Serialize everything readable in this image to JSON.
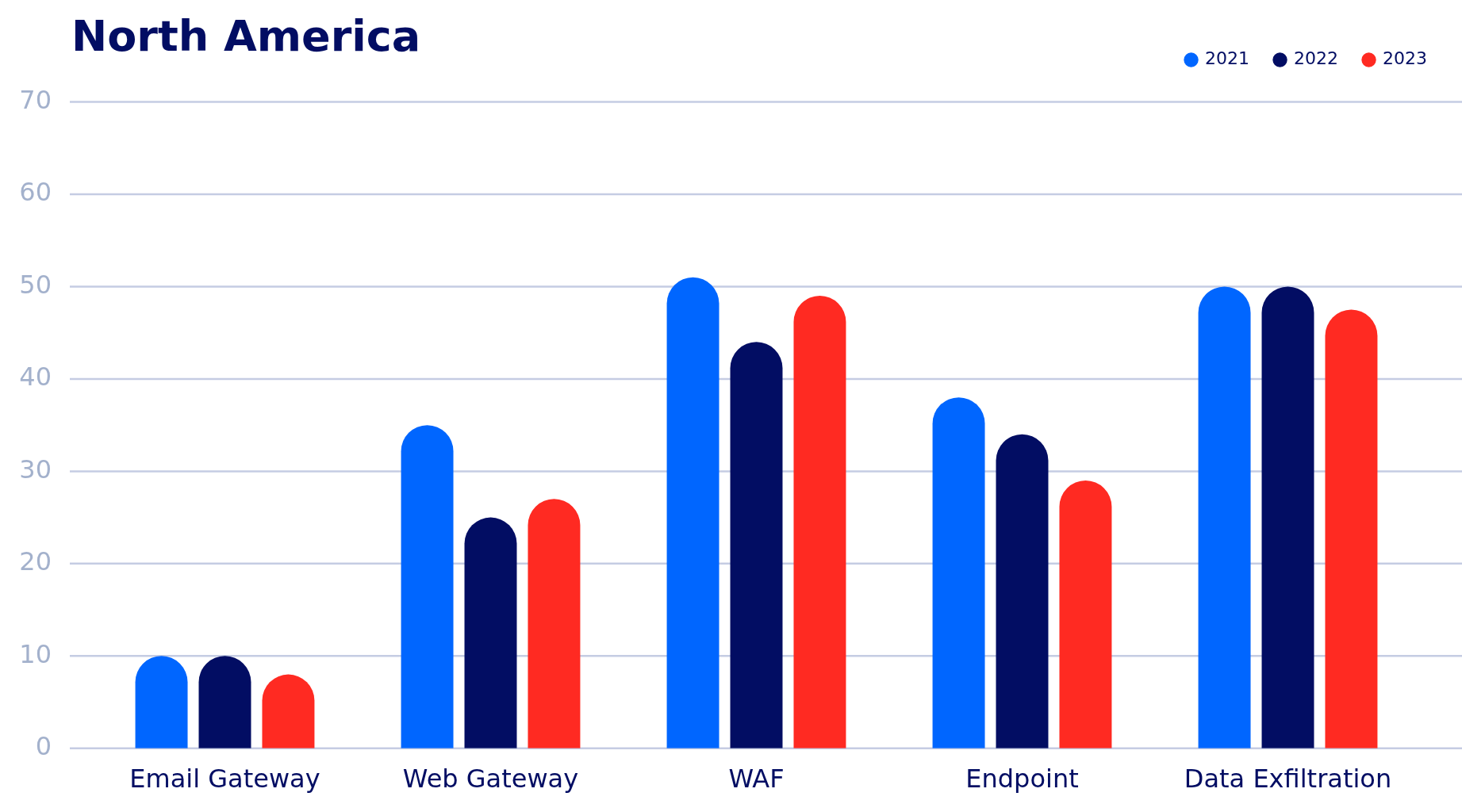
{
  "chart_data": {
    "type": "bar",
    "title": "North America",
    "categories": [
      "Email Gateway",
      "Web Gateway",
      "WAF",
      "Endpoint",
      "Data Exfiltration"
    ],
    "series": [
      {
        "name": "2021",
        "color": "#0066ff",
        "values": [
          10,
          35,
          51,
          38,
          50
        ]
      },
      {
        "name": "2022",
        "color": "#020d63",
        "values": [
          10,
          25,
          44,
          34,
          50
        ]
      },
      {
        "name": "2023",
        "color": "#ff2a22",
        "values": [
          8,
          27,
          49,
          29,
          47.5
        ]
      }
    ],
    "ylim": [
      0,
      70
    ],
    "yticks": [
      0,
      10,
      20,
      30,
      40,
      50,
      60,
      70
    ],
    "grid": "y",
    "legend": "top right"
  }
}
